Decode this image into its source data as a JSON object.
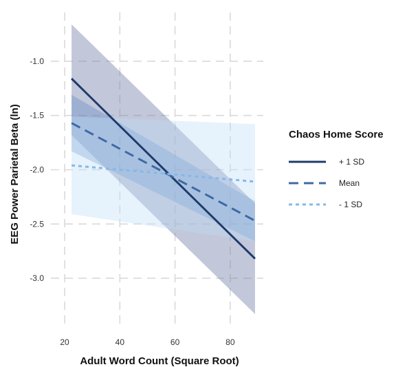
{
  "chart_data": {
    "type": "line",
    "xlabel": "Adult Word Count (Square Root)",
    "ylabel": "EEG Power Parietal Beta (ln)",
    "xlim": [
      15,
      92
    ],
    "ylim": [
      -3.45,
      -0.55
    ],
    "x_ticks": [
      20,
      40,
      60,
      80
    ],
    "y_ticks": [
      -1.0,
      -1.5,
      -2.0,
      -2.5,
      -3.0
    ],
    "x_tick_labels": [
      "20",
      "40",
      "60",
      "80"
    ],
    "y_tick_labels": [
      "-1.0",
      "-1.5",
      "-2.0",
      "-2.5",
      "-3.0"
    ],
    "grid": true,
    "legend": {
      "title": "Chaos Home Score",
      "position": "right"
    },
    "series": [
      {
        "name": "+ 1 SD",
        "line_style": "solid",
        "color": "#1f3b6b",
        "band_color": "#6f7aa8",
        "x": [
          22.5,
          89
        ],
        "y": [
          -1.16,
          -2.82
        ],
        "ci_lower": [
          -1.68,
          -3.33
        ],
        "ci_upper": [
          -0.66,
          -2.31
        ]
      },
      {
        "name": "Mean",
        "line_style": "dashed",
        "color": "#3e6aa3",
        "band_color": "#5f8cc4",
        "x": [
          22.5,
          89
        ],
        "y": [
          -1.57,
          -2.47
        ],
        "ci_lower": [
          -1.83,
          -2.66
        ],
        "ci_upper": [
          -1.31,
          -2.29
        ]
      },
      {
        "name": "- 1 SD",
        "line_style": "dotted",
        "color": "#86b8ea",
        "band_color": "#bcdcf7",
        "x": [
          22.5,
          89
        ],
        "y": [
          -1.96,
          -2.11
        ],
        "ci_lower": [
          -2.41,
          -2.66
        ],
        "ci_upper": [
          -1.51,
          -1.58
        ]
      }
    ]
  }
}
